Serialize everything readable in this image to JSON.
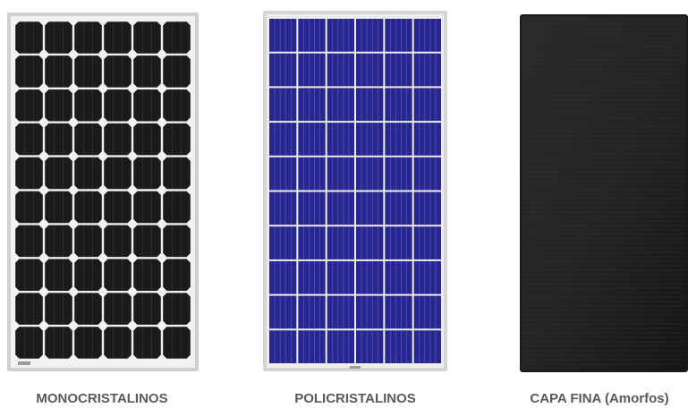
{
  "panels": [
    {
      "id": "mono",
      "label": "MONOCRISTALINOS",
      "cell_color": "#1b1b1b",
      "frame_color": "#cfcfcf"
    },
    {
      "id": "poly",
      "label": "POLICRISTALINOS",
      "cell_color": "#27278f",
      "frame_color": "#d4d4d4"
    },
    {
      "id": "thin",
      "label": "CAPA FINA (Amorfos)",
      "cell_color": "#232325",
      "frame_color": "#1a1a1a"
    }
  ]
}
